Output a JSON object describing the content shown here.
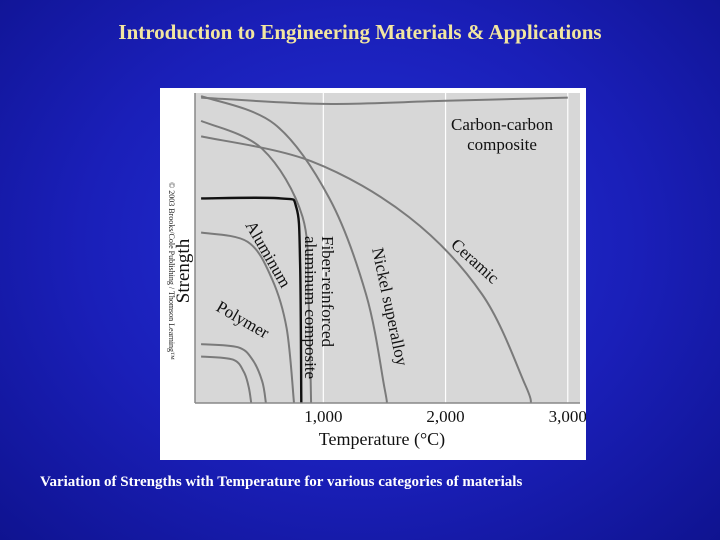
{
  "slide": {
    "title": "Introduction to Engineering Materials & Applications",
    "caption": "Variation of Strengths with Temperature for various categories of materials",
    "copyright": "© 2003 Brooks/Cole Publishing / Thomson Learning™"
  },
  "chart_data": {
    "type": "line",
    "title": "",
    "xlabel": "Temperature (°C)",
    "ylabel": "Strength",
    "x_ticks": [
      1000,
      2000,
      3000
    ],
    "x_tick_labels": [
      "1,000",
      "2,000",
      "3,000"
    ],
    "xlim": [
      -50,
      3100
    ],
    "ylim": [
      0,
      1
    ],
    "grid": true,
    "colors": {
      "plot_bg": "#d7d7d7",
      "curve": "#7a7a7a",
      "aluminum_curve": "#111111"
    },
    "series": [
      {
        "name": "Polymer",
        "label_text": "Polymer",
        "highlight": false,
        "points": [
          [
            0,
            0.19
          ],
          [
            300,
            0.18
          ],
          [
            420,
            0.14
          ],
          [
            500,
            0.07
          ],
          [
            530,
            0.0
          ]
        ]
      },
      {
        "name": "Polymer",
        "label_text": "",
        "highlight": false,
        "points": [
          [
            0,
            0.15
          ],
          [
            260,
            0.14
          ],
          [
            350,
            0.1
          ],
          [
            390,
            0.05
          ],
          [
            410,
            0.0
          ]
        ]
      },
      {
        "name": "Aluminum",
        "label_text": "Aluminum",
        "highlight": false,
        "points": [
          [
            0,
            0.55
          ],
          [
            380,
            0.52
          ],
          [
            580,
            0.4
          ],
          [
            700,
            0.24
          ],
          [
            760,
            0.0
          ]
        ]
      },
      {
        "name": "Aluminum",
        "label_text": "",
        "highlight": true,
        "points": [
          [
            0,
            0.66
          ],
          [
            650,
            0.66
          ],
          [
            780,
            0.63
          ],
          [
            810,
            0.45
          ],
          [
            820,
            0.0
          ]
        ]
      },
      {
        "name": "Fiber-reinforced aluminum composite",
        "label_text": "Fiber-reinforced\naluminum composite",
        "highlight": false,
        "points": [
          [
            0,
            0.91
          ],
          [
            500,
            0.82
          ],
          [
            830,
            0.6
          ],
          [
            880,
            0.32
          ],
          [
            900,
            0.0
          ]
        ]
      },
      {
        "name": "Nickel superalloy",
        "label_text": "Nickel superalloy",
        "highlight": false,
        "points": [
          [
            0,
            0.99
          ],
          [
            600,
            0.9
          ],
          [
            1050,
            0.66
          ],
          [
            1350,
            0.35
          ],
          [
            1500,
            0.05
          ],
          [
            1520,
            0.0
          ]
        ]
      },
      {
        "name": "Ceramic",
        "label_text": "Ceramic",
        "highlight": false,
        "points": [
          [
            0,
            0.86
          ],
          [
            900,
            0.78
          ],
          [
            1700,
            0.6
          ],
          [
            2300,
            0.35
          ],
          [
            2650,
            0.06
          ],
          [
            2700,
            0.0
          ]
        ]
      },
      {
        "name": "Carbon-carbon composite",
        "label_text": "Carbon-carbon\ncomposite",
        "highlight": false,
        "points": [
          [
            0,
            0.985
          ],
          [
            1000,
            0.965
          ],
          [
            2000,
            0.975
          ],
          [
            3000,
            0.985
          ]
        ]
      }
    ]
  }
}
